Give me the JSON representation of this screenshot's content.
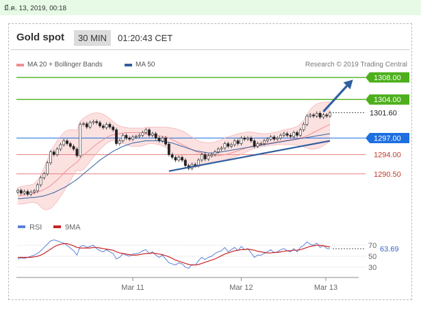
{
  "date_stamp": "มี.ค. 13, 2019, 00:18",
  "header": {
    "title": "Gold spot",
    "timeframe": "30 MIN",
    "time": "01:20:43 CET"
  },
  "legend": {
    "ma20": "MA 20 + Bollinger Bands",
    "ma20_color": "#f08f8f",
    "ma50": "MA 50",
    "ma50_color": "#2f5f9e",
    "research": "Research © 2019 Trading Central"
  },
  "colors": {
    "green": "#4caf1b",
    "blue": "#1e6fe0",
    "red": "#e77b7b",
    "candle": "#222222",
    "arrow": "#2f5f9e"
  },
  "chart_data": {
    "type": "line",
    "x_labels": [
      "Mar 11",
      "Mar 12",
      "Mar 13"
    ],
    "price_range": [
      1284.5,
      1309.5
    ],
    "last_price": "1301.60",
    "levels": [
      {
        "value": 1308.0,
        "label": "1308.00",
        "kind": "resistance"
      },
      {
        "value": 1304.0,
        "label": "1304.00",
        "kind": "resistance"
      },
      {
        "value": 1297.0,
        "label": "1297.00",
        "kind": "pivot"
      },
      {
        "value": 1294.0,
        "label": "1294.00",
        "kind": "support"
      },
      {
        "value": 1290.5,
        "label": "1290.50",
        "kind": "support"
      }
    ],
    "close": [
      1287.5,
      1287.0,
      1287.3,
      1286.8,
      1287.2,
      1287.4,
      1288.5,
      1289.8,
      1290.5,
      1292.5,
      1294.5,
      1294.0,
      1295.0,
      1295.8,
      1296.5,
      1296.0,
      1295.5,
      1295.0,
      1293.8,
      1299.5,
      1299.6,
      1299.0,
      1299.8,
      1300.0,
      1299.8,
      1299.2,
      1298.9,
      1299.5,
      1299.0,
      1298.5,
      1296.0,
      1296.5,
      1297.5,
      1297.0,
      1296.8,
      1297.2,
      1297.3,
      1297.5,
      1298.0,
      1298.5,
      1297.5,
      1297.8,
      1297.0,
      1296.5,
      1297.0,
      1295.9,
      1294.0,
      1293.5,
      1293.0,
      1293.5,
      1293.0,
      1292.0,
      1291.5,
      1292.2,
      1292.0,
      1293.0,
      1294.0,
      1293.2,
      1293.8,
      1294.0,
      1294.5,
      1295.0,
      1295.2,
      1296.0,
      1295.5,
      1295.8,
      1296.5,
      1296.0,
      1297.0,
      1296.8,
      1297.0,
      1296.5,
      1295.5,
      1296.0,
      1296.0,
      1296.5,
      1296.8,
      1297.2,
      1296.8,
      1297.0,
      1297.5,
      1297.8,
      1297.5,
      1297.3,
      1298.0,
      1297.5,
      1298.5,
      1299.5,
      1301.0,
      1301.2,
      1301.0,
      1301.5,
      1300.8,
      1301.2,
      1301.0,
      1301.6
    ],
    "ma20": [
      1286.5,
      1286.6,
      1286.7,
      1286.8,
      1286.9,
      1287.0,
      1287.2,
      1287.4,
      1287.7,
      1288.0,
      1288.4,
      1288.9,
      1289.4,
      1290.0,
      1290.6,
      1291.2,
      1291.7,
      1292.2,
      1292.6,
      1293.3,
      1293.9,
      1294.4,
      1294.9,
      1295.4,
      1295.9,
      1296.3,
      1296.7,
      1297.1,
      1297.4,
      1297.6,
      1297.7,
      1297.8,
      1297.9,
      1298.0,
      1298.0,
      1298.0,
      1298.0,
      1298.0,
      1297.9,
      1297.8,
      1297.7,
      1297.6,
      1297.5,
      1297.4,
      1297.3,
      1297.2,
      1297.0,
      1296.7,
      1296.4,
      1296.1,
      1295.8,
      1295.5,
      1295.2,
      1294.9,
      1294.6,
      1294.4,
      1294.2,
      1294.0,
      1293.9,
      1293.8,
      1293.8,
      1293.8,
      1293.9,
      1294.0,
      1294.1,
      1294.3,
      1294.5,
      1294.7,
      1294.9,
      1295.1,
      1295.3,
      1295.5,
      1295.6,
      1295.7,
      1295.8,
      1295.9,
      1296.0,
      1296.1,
      1296.2,
      1296.3,
      1296.4,
      1296.5,
      1296.6,
      1296.7,
      1296.8,
      1296.9,
      1297.0,
      1297.2,
      1297.4,
      1297.7,
      1298.0,
      1298.3,
      1298.6,
      1298.9,
      1299.2,
      1299.5
    ],
    "bb_upper": [
      1288.0,
      1288.2,
      1288.3,
      1288.4,
      1288.5,
      1288.7,
      1289.3,
      1290.3,
      1291.6,
      1293.0,
      1294.6,
      1295.5,
      1296.5,
      1297.3,
      1298.0,
      1298.4,
      1298.5,
      1298.5,
      1298.4,
      1300.0,
      1300.6,
      1301.0,
      1301.3,
      1301.5,
      1301.6,
      1301.5,
      1301.3,
      1301.0,
      1300.5,
      1300.0,
      1299.5,
      1299.2,
      1299.0,
      1298.9,
      1298.8,
      1298.8,
      1298.8,
      1298.8,
      1298.8,
      1298.9,
      1299.0,
      1299.0,
      1299.0,
      1299.0,
      1299.0,
      1299.0,
      1298.9,
      1298.8,
      1298.7,
      1298.5,
      1298.3,
      1298.0,
      1297.6,
      1297.2,
      1296.8,
      1296.5,
      1296.3,
      1296.2,
      1296.1,
      1296.2,
      1296.3,
      1296.5,
      1296.7,
      1297.0,
      1297.2,
      1297.4,
      1297.6,
      1297.8,
      1297.9,
      1298.0,
      1298.1,
      1298.1,
      1298.0,
      1297.9,
      1297.8,
      1297.8,
      1297.8,
      1297.9,
      1298.0,
      1298.1,
      1298.3,
      1298.5,
      1298.6,
      1298.7,
      1298.9,
      1299.1,
      1299.5,
      1300.2,
      1301.2,
      1302.2,
      1302.8,
      1303.2,
      1303.4,
      1303.5,
      1303.5,
      1303.6
    ],
    "bb_lower": [
      1285.0,
      1285.0,
      1285.1,
      1285.2,
      1285.3,
      1285.3,
      1285.1,
      1284.5,
      1284.0,
      1284.0,
      1284.2,
      1284.8,
      1285.5,
      1286.4,
      1287.3,
      1288.3,
      1289.3,
      1290.3,
      1291.2,
      1291.0,
      1291.3,
      1292.0,
      1292.8,
      1293.5,
      1294.2,
      1294.9,
      1295.5,
      1296.0,
      1296.4,
      1296.6,
      1296.4,
      1296.2,
      1296.0,
      1295.8,
      1295.6,
      1295.5,
      1295.5,
      1295.5,
      1295.6,
      1295.8,
      1296.0,
      1296.0,
      1295.9,
      1295.8,
      1295.6,
      1295.3,
      1294.9,
      1294.4,
      1293.9,
      1293.4,
      1292.9,
      1292.4,
      1292.0,
      1291.8,
      1291.7,
      1291.8,
      1292.0,
      1292.2,
      1292.4,
      1292.6,
      1292.7,
      1292.8,
      1292.9,
      1293.0,
      1293.2,
      1293.4,
      1293.6,
      1293.8,
      1294.0,
      1294.3,
      1294.6,
      1294.9,
      1295.1,
      1295.3,
      1295.4,
      1295.5,
      1295.6,
      1295.7,
      1295.7,
      1295.8,
      1295.8,
      1295.8,
      1295.8,
      1295.8,
      1295.8,
      1295.7,
      1295.6,
      1295.4,
      1295.2,
      1295.0,
      1295.0,
      1295.1,
      1295.3,
      1295.6,
      1296.0,
      1296.4
    ],
    "ma50": [
      1286.0,
      1286.0,
      1286.1,
      1286.1,
      1286.2,
      1286.2,
      1286.3,
      1286.4,
      1286.5,
      1286.7,
      1286.9,
      1287.1,
      1287.4,
      1287.7,
      1288.0,
      1288.3,
      1288.7,
      1289.1,
      1289.5,
      1290.0,
      1290.5,
      1291.0,
      1291.5,
      1292.0,
      1292.5,
      1293.0,
      1293.4,
      1293.8,
      1294.2,
      1294.6,
      1294.9,
      1295.2,
      1295.5,
      1295.7,
      1295.9,
      1296.1,
      1296.2,
      1296.3,
      1296.4,
      1296.5,
      1296.5,
      1296.5,
      1296.5,
      1296.5,
      1296.4,
      1296.3,
      1296.2,
      1296.1,
      1295.9,
      1295.7,
      1295.5,
      1295.3,
      1295.1,
      1294.9,
      1294.7,
      1294.6,
      1294.5,
      1294.4,
      1294.3,
      1294.3,
      1294.3,
      1294.4,
      1294.5,
      1294.6,
      1294.7,
      1294.8,
      1294.9,
      1295.0,
      1295.1,
      1295.2,
      1295.3,
      1295.4,
      1295.5,
      1295.6,
      1295.7,
      1295.8,
      1295.9,
      1296.0,
      1296.1,
      1296.2,
      1296.3,
      1296.4,
      1296.5,
      1296.6,
      1296.7,
      1296.8,
      1296.9,
      1297.0,
      1297.1,
      1297.2,
      1297.3,
      1297.4,
      1297.5,
      1297.6,
      1297.7,
      1297.8
    ],
    "trendline": [
      [
        46,
        1291.0
      ],
      [
        95,
        1296.5
      ]
    ],
    "arrow": [
      [
        93,
        1301.8
      ],
      [
        102,
        1307.6
      ]
    ],
    "rsi": {
      "levels": [
        70,
        50,
        30
      ],
      "value_label": "63.69",
      "legend": [
        "RSI",
        "9MA"
      ],
      "rsi_color": "#5b7fd6",
      "ma_color": "#cc2222",
      "rsi": [
        45,
        47,
        46,
        48,
        50,
        52,
        55,
        60,
        66,
        72,
        78,
        80,
        78,
        76,
        74,
        70,
        65,
        60,
        52,
        68,
        70,
        66,
        68,
        70,
        64,
        60,
        58,
        62,
        58,
        55,
        45,
        48,
        55,
        52,
        50,
        54,
        55,
        56,
        60,
        62,
        55,
        58,
        52,
        48,
        52,
        45,
        38,
        36,
        34,
        38,
        36,
        30,
        28,
        35,
        34,
        42,
        48,
        44,
        48,
        50,
        55,
        58,
        60,
        66,
        58,
        62,
        66,
        60,
        68,
        62,
        64,
        56,
        48,
        52,
        52,
        55,
        58,
        62,
        56,
        58,
        62,
        64,
        60,
        58,
        64,
        58,
        66,
        70,
        76,
        72,
        70,
        74,
        66,
        70,
        64,
        63.69
      ],
      "ma": [
        48,
        48,
        48,
        48,
        48,
        49,
        50,
        52,
        55,
        59,
        63,
        67,
        70,
        72,
        73,
        73,
        71,
        69,
        66,
        65,
        65,
        65,
        65,
        66,
        66,
        65,
        64,
        63,
        62,
        61,
        58,
        56,
        55,
        54,
        53,
        52,
        52,
        53,
        54,
        55,
        55,
        56,
        55,
        54,
        53,
        51,
        49,
        46,
        43,
        41,
        39,
        37,
        35,
        34,
        34,
        35,
        37,
        39,
        41,
        43,
        45,
        48,
        51,
        54,
        56,
        58,
        60,
        61,
        62,
        62,
        63,
        62,
        61,
        59,
        58,
        57,
        56,
        56,
        57,
        57,
        58,
        59,
        60,
        60,
        61,
        61,
        62,
        64,
        66,
        68,
        69,
        70,
        70,
        69,
        68,
        67
      ]
    }
  }
}
